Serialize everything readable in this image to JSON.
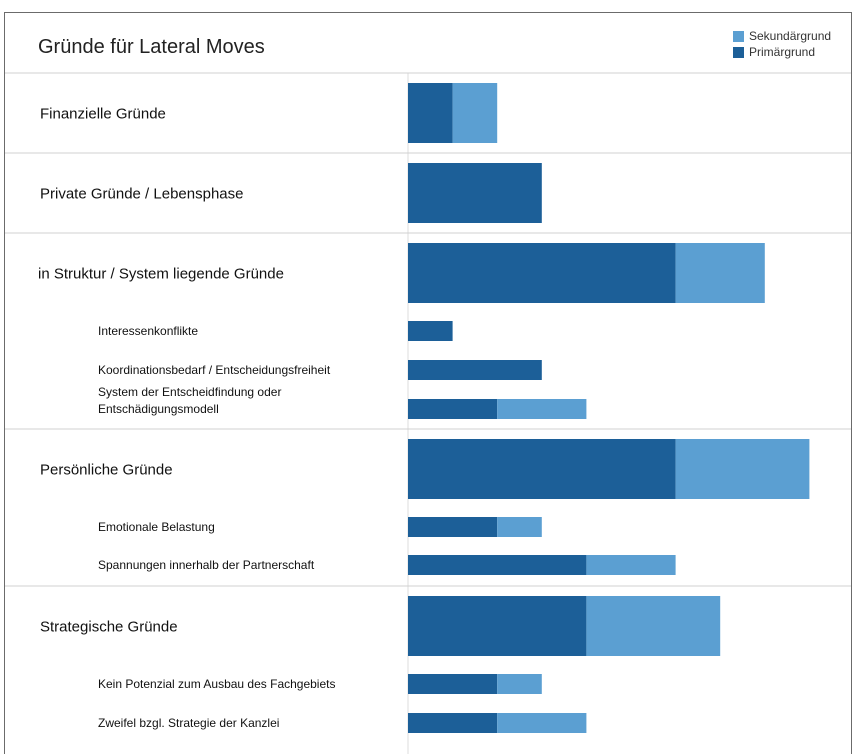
{
  "chart_data": {
    "type": "bar",
    "title": "Gründe für Lateral Moves",
    "orientation": "horizontal",
    "stacked": true,
    "legend_position": "top-right",
    "series": [
      {
        "name": "Primärgrund",
        "color": "#1c5f98"
      },
      {
        "name": "Sekundärgrund",
        "color": "#5b9fd2"
      }
    ],
    "rows": [
      {
        "label": "Finanzielle Gründe",
        "level": "main",
        "primary": 1,
        "secondary": 1
      },
      {
        "label": "Private Gründe / Lebensphase",
        "level": "main",
        "primary": 3,
        "secondary": 0
      },
      {
        "label": "in Struktur / System liegende Gründe",
        "level": "main",
        "primary": 6,
        "secondary": 2
      },
      {
        "label": "Interessenkonflikte",
        "level": "sub",
        "primary": 1,
        "secondary": 0
      },
      {
        "label": "Koordinationsbedarf / Entscheidungsfreiheit",
        "level": "sub",
        "primary": 3,
        "secondary": 0
      },
      {
        "label": "System der Entscheidfindung oder Entschädigungsmodell",
        "level": "sub",
        "primary": 2,
        "secondary": 2
      },
      {
        "label": "Persönliche Gründe",
        "level": "main",
        "primary": 6,
        "secondary": 3
      },
      {
        "label": "Emotionale Belastung",
        "level": "sub",
        "primary": 2,
        "secondary": 1
      },
      {
        "label": "Spannungen innerhalb der Partnerschaft",
        "level": "sub",
        "primary": 4,
        "secondary": 2
      },
      {
        "label": "Strategische Gründe",
        "level": "main",
        "primary": 4,
        "secondary": 3
      },
      {
        "label": "Kein Potenzial zum Ausbau des Fachgebiets",
        "level": "sub",
        "primary": 2,
        "secondary": 1
      },
      {
        "label": "Zweifel bzgl. Strategie der Kanzlei",
        "level": "sub",
        "primary": 2,
        "secondary": 2
      }
    ]
  }
}
